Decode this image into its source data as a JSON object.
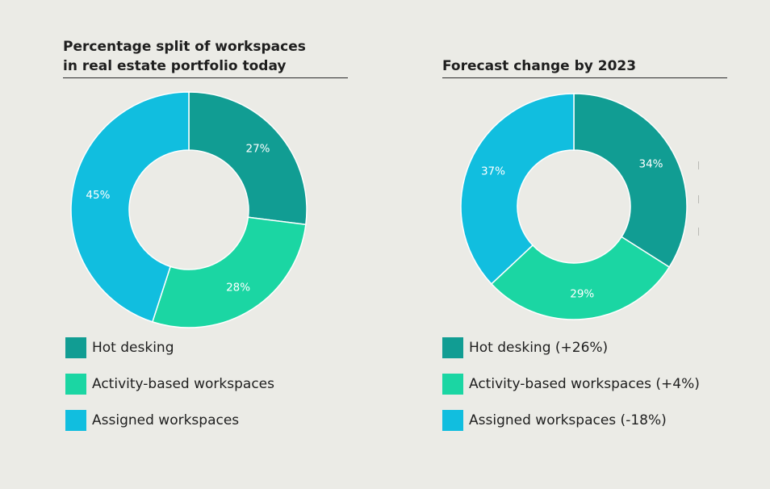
{
  "colors": {
    "hot": "#119d93",
    "activity": "#1bd6a3",
    "assigned": "#11bedf",
    "background": "#ebebe6"
  },
  "chart_data": [
    {
      "type": "pie",
      "title": "Percentage split of workspaces in real estate portfolio today",
      "title_lines": [
        "Percentage split of workspaces",
        "in real estate portfolio today"
      ],
      "categories": [
        "Hot desking",
        "Activity-based workspaces",
        "Assigned workspaces"
      ],
      "values": [
        27,
        28,
        45
      ],
      "labels": [
        "27%",
        "28%",
        "45%"
      ],
      "legend": [
        "Hot desking",
        "Activity-based workspaces",
        "Assigned workspaces"
      ],
      "legend_position": "bottom"
    },
    {
      "type": "pie",
      "title": "Forecast change by 2023",
      "title_lines": [
        "Forecast change by 2023"
      ],
      "categories": [
        "Hot desking",
        "Activity-based workspaces",
        "Assigned workspaces"
      ],
      "values": [
        34,
        29,
        37
      ],
      "labels": [
        "34%",
        "29%",
        "37%"
      ],
      "legend": [
        "Hot desking (+26%)",
        "Activity-based workspaces (+4%)",
        "Assigned workspaces (-18%)"
      ],
      "legend_position": "bottom"
    }
  ]
}
